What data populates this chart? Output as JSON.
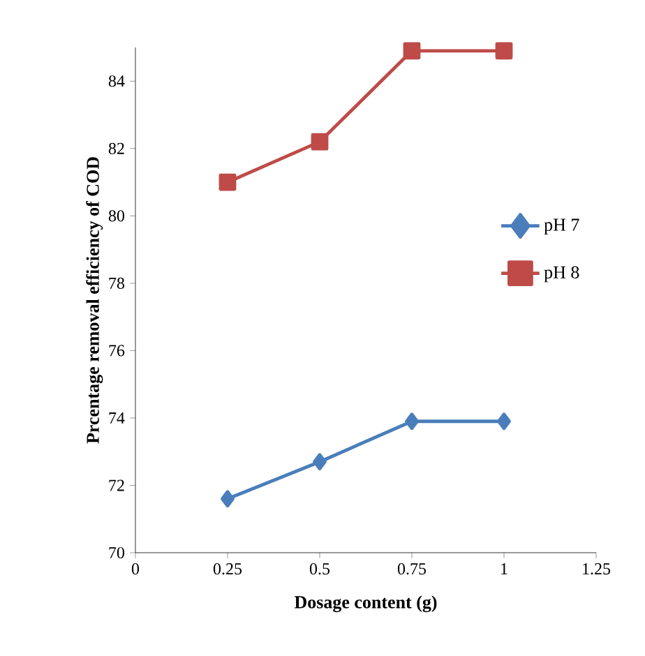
{
  "chart_data": {
    "type": "line",
    "xlabel": "Dosage content (g)",
    "ylabel": "Prcentage removal efficiency of COD",
    "x": [
      0.25,
      0.5,
      0.75,
      1
    ],
    "series": [
      {
        "name": "pH 7",
        "color": "#4a7ebb",
        "marker": "diamond",
        "values": [
          71.6,
          72.7,
          73.9,
          73.9
        ]
      },
      {
        "name": "pH 8",
        "color": "#be4b48",
        "marker": "square",
        "values": [
          81.0,
          82.2,
          84.9,
          84.9
        ]
      }
    ],
    "xlim": [
      0,
      1.25
    ],
    "xticks": [
      0,
      0.25,
      0.5,
      0.75,
      1,
      1.25
    ],
    "ylim": [
      70,
      85
    ],
    "yticks": [
      70,
      72,
      74,
      76,
      78,
      80,
      82,
      84
    ],
    "grid": false,
    "legend": "right"
  }
}
